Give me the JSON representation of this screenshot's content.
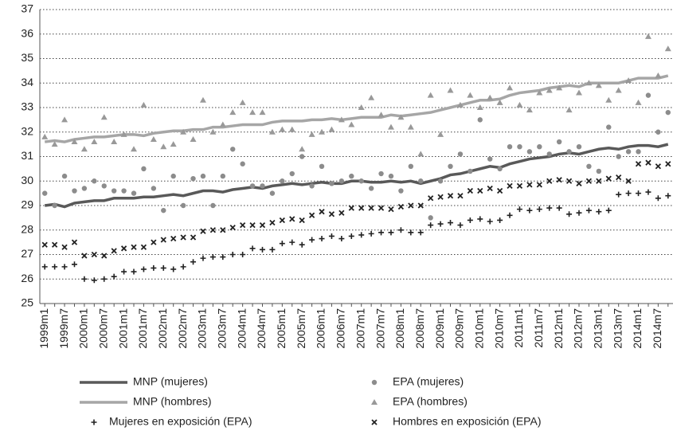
{
  "chart_data": {
    "type": "line",
    "categories": [
      "1999m1",
      null,
      "1999m7",
      null,
      "2000m1",
      null,
      "2000m7",
      null,
      "2001m1",
      null,
      "2001m7",
      null,
      "2002m1",
      null,
      "2002m7",
      null,
      "2003m1",
      null,
      "2003m7",
      null,
      "2004m1",
      null,
      "2004m7",
      null,
      "2005m1",
      null,
      "2005m7",
      null,
      "2006m1",
      null,
      "2006m7",
      null,
      "2007m1",
      null,
      "2007m7",
      null,
      "2008m1",
      null,
      "2008m7",
      null,
      "2009m1",
      null,
      "2009m7",
      null,
      "2010m1",
      null,
      "2010m7",
      null,
      "2011m1",
      null,
      "2011m7",
      null,
      "2012m1",
      null,
      "2012m7",
      null,
      "2013m1",
      null,
      "2013m7",
      null,
      "2014m1",
      null,
      "2014m7",
      null
    ],
    "ylim": [
      25,
      37
    ],
    "yticks": [
      25,
      26,
      27,
      28,
      29,
      30,
      31,
      32,
      33,
      34,
      35,
      36,
      37
    ],
    "grid": true,
    "series": [
      {
        "name": "MNP (mujeres)",
        "color": "#595959",
        "marker": "line",
        "values": [
          29.0,
          29.05,
          28.95,
          29.1,
          29.15,
          29.2,
          29.2,
          29.3,
          29.3,
          29.3,
          29.35,
          29.35,
          29.4,
          29.45,
          29.4,
          29.5,
          29.6,
          29.6,
          29.55,
          29.65,
          29.7,
          29.75,
          29.7,
          29.8,
          29.85,
          29.9,
          29.85,
          29.9,
          29.95,
          29.9,
          29.9,
          30.0,
          30.0,
          29.95,
          29.95,
          30.0,
          29.95,
          30.0,
          29.9,
          30.0,
          30.1,
          30.25,
          30.3,
          30.4,
          30.5,
          30.6,
          30.55,
          30.7,
          30.8,
          30.9,
          30.95,
          31.0,
          31.1,
          31.15,
          31.1,
          31.2,
          31.3,
          31.35,
          31.3,
          31.4,
          31.45,
          31.45,
          31.4,
          31.5
        ]
      },
      {
        "name": "EPA (mujeres)",
        "color": "#8c8c8c",
        "marker": "circle",
        "values": [
          29.5,
          29.0,
          30.2,
          29.6,
          29.7,
          30.0,
          29.8,
          29.6,
          29.6,
          29.5,
          30.5,
          29.7,
          28.8,
          30.2,
          29.0,
          30.1,
          30.2,
          29.0,
          30.2,
          31.3,
          30.7,
          29.8,
          29.8,
          29.5,
          30.0,
          30.3,
          31.0,
          29.8,
          30.6,
          29.9,
          30.0,
          30.2,
          30.0,
          29.7,
          30.3,
          30.2,
          29.6,
          30.6,
          30.0,
          28.5,
          30.0,
          30.6,
          31.1,
          30.4,
          32.5,
          30.9,
          30.5,
          31.4,
          31.4,
          31.2,
          31.4,
          31.1,
          31.6,
          31.2,
          31.4,
          30.6,
          30.4,
          32.2,
          31.0,
          31.2,
          31.2,
          33.5,
          32.0,
          32.8
        ]
      },
      {
        "name": "MNP (hombres)",
        "color": "#a6a6a6",
        "marker": "line",
        "values": [
          31.6,
          31.65,
          31.6,
          31.7,
          31.75,
          31.8,
          31.8,
          31.85,
          31.9,
          31.9,
          31.85,
          31.95,
          32.0,
          32.05,
          32.05,
          32.1,
          32.1,
          32.2,
          32.2,
          32.25,
          32.3,
          32.3,
          32.3,
          32.4,
          32.45,
          32.45,
          32.45,
          32.5,
          32.5,
          32.55,
          32.5,
          32.55,
          32.6,
          32.6,
          32.6,
          32.7,
          32.65,
          32.7,
          32.75,
          32.8,
          32.9,
          33.0,
          33.1,
          33.2,
          33.3,
          33.3,
          33.35,
          33.5,
          33.6,
          33.65,
          33.7,
          33.8,
          33.85,
          33.9,
          33.85,
          34.0,
          34.0,
          34.0,
          34.0,
          34.1,
          34.2,
          34.2,
          34.2,
          34.3
        ]
      },
      {
        "name": "EPA (hombres)",
        "color": "#999999",
        "marker": "triangle",
        "values": [
          31.8,
          31.5,
          32.5,
          31.6,
          31.3,
          31.6,
          32.6,
          31.6,
          31.9,
          31.3,
          33.1,
          31.7,
          31.4,
          31.5,
          32.0,
          31.7,
          33.3,
          32.0,
          32.3,
          32.8,
          33.2,
          32.8,
          32.8,
          32.0,
          32.1,
          32.1,
          31.3,
          31.9,
          32.0,
          32.1,
          32.5,
          32.3,
          33.0,
          33.4,
          32.7,
          32.2,
          32.6,
          32.2,
          31.1,
          33.5,
          31.9,
          33.7,
          33.1,
          33.5,
          33.0,
          33.4,
          33.2,
          33.8,
          33.1,
          32.9,
          33.6,
          33.7,
          33.8,
          32.9,
          33.6,
          34.0,
          33.9,
          33.3,
          33.7,
          34.1,
          33.2,
          35.9,
          34.3,
          35.4
        ]
      },
      {
        "name": "Mujeres en exposición (EPA)",
        "color": "#222222",
        "marker": "plus",
        "values": [
          26.5,
          26.5,
          26.5,
          26.6,
          26.0,
          25.95,
          26.0,
          26.1,
          26.3,
          26.3,
          26.4,
          26.45,
          26.45,
          26.4,
          26.5,
          26.7,
          26.85,
          26.9,
          26.9,
          27.0,
          27.0,
          27.25,
          27.2,
          27.2,
          27.45,
          27.5,
          27.4,
          27.6,
          27.65,
          27.75,
          27.65,
          27.75,
          27.8,
          27.85,
          27.9,
          27.9,
          28.0,
          27.9,
          27.9,
          28.2,
          28.25,
          28.3,
          28.2,
          28.4,
          28.45,
          28.35,
          28.4,
          28.6,
          28.85,
          28.8,
          28.85,
          28.9,
          28.9,
          28.65,
          28.7,
          28.8,
          28.75,
          28.8,
          29.45,
          29.5,
          29.5,
          29.55,
          29.3,
          29.4
        ]
      },
      {
        "name": "Hombres en exposición (EPA)",
        "color": "#222222",
        "marker": "cross",
        "values": [
          27.4,
          27.4,
          27.3,
          27.5,
          26.95,
          27.0,
          26.95,
          27.15,
          27.25,
          27.3,
          27.3,
          27.5,
          27.6,
          27.65,
          27.7,
          27.7,
          27.95,
          28.0,
          28.0,
          28.1,
          28.2,
          28.2,
          28.2,
          28.3,
          28.4,
          28.45,
          28.4,
          28.6,
          28.75,
          28.65,
          28.7,
          28.9,
          28.9,
          28.9,
          28.9,
          28.85,
          28.95,
          29.0,
          29.0,
          29.3,
          29.35,
          29.4,
          29.4,
          29.6,
          29.6,
          29.7,
          29.6,
          29.8,
          29.8,
          29.85,
          29.85,
          30.0,
          30.05,
          30.0,
          29.9,
          30.0,
          30.0,
          30.1,
          30.15,
          30.0,
          30.7,
          30.75,
          30.6,
          30.7
        ]
      }
    ]
  }
}
